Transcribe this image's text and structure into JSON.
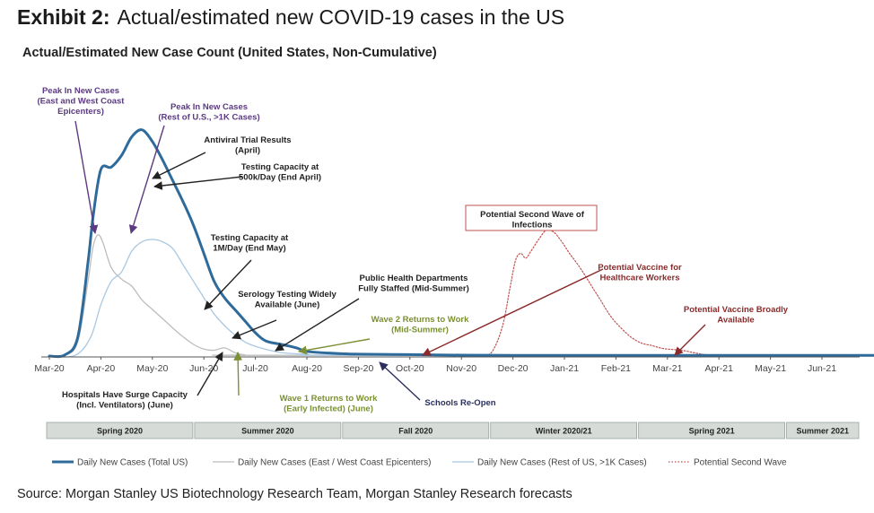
{
  "title": {
    "prefix": "Exhibit 2:",
    "text": "Actual/estimated new COVID-19 cases in the US"
  },
  "chart_data": {
    "type": "line",
    "subtitle": "Actual/Estimated New Case Count (United States, Non-Cumulative)",
    "x_unit": "months since Mar-20",
    "x_range": [
      0,
      16.5
    ],
    "y_range": [
      0,
      100
    ],
    "y_label": "relative new case count (unlabeled axis)",
    "x_ticks": [
      "Mar-20",
      "Apr-20",
      "May-20",
      "Jun-20",
      "Jul-20",
      "Aug-20",
      "Sep-20",
      "Oct-20",
      "Nov-20",
      "Dec-20",
      "Jan-21",
      "Feb-21",
      "Mar-21",
      "Apr-21",
      "May-21",
      "Jun-21"
    ],
    "series": [
      {
        "name": "Daily New Cases (Total US)",
        "color": "#2e6a9a",
        "style": "solid-thick",
        "points": [
          [
            0,
            0
          ],
          [
            0.3,
            0.5
          ],
          [
            0.55,
            8
          ],
          [
            0.75,
            40
          ],
          [
            0.85,
            60
          ],
          [
            1.0,
            80
          ],
          [
            1.2,
            81
          ],
          [
            1.4,
            86
          ],
          [
            1.6,
            94
          ],
          [
            1.8,
            97
          ],
          [
            2.0,
            92
          ],
          [
            2.2,
            84
          ],
          [
            2.4,
            75
          ],
          [
            2.6,
            66
          ],
          [
            2.8,
            56
          ],
          [
            3.0,
            44
          ],
          [
            3.2,
            32
          ],
          [
            3.4,
            25
          ],
          [
            3.6,
            20
          ],
          [
            3.8,
            15
          ],
          [
            4.0,
            10
          ],
          [
            4.2,
            6.5
          ],
          [
            4.5,
            5
          ],
          [
            4.8,
            3.5
          ],
          [
            5.0,
            2
          ],
          [
            5.5,
            1.2
          ],
          [
            6.0,
            0.8
          ],
          [
            7.0,
            0.6
          ],
          [
            8.0,
            0.4
          ],
          [
            9.0,
            0.3
          ],
          [
            10.0,
            0.3
          ],
          [
            12.0,
            0.3
          ],
          [
            13.0,
            0.3
          ],
          [
            16.5,
            0.3
          ]
        ]
      },
      {
        "name": "Daily New Cases (East / West Coast Epicenters)",
        "color": "#bdbdbd",
        "style": "solid",
        "points": [
          [
            0,
            0
          ],
          [
            0.3,
            0.5
          ],
          [
            0.55,
            6
          ],
          [
            0.75,
            32
          ],
          [
            0.85,
            47
          ],
          [
            0.95,
            52
          ],
          [
            1.05,
            48
          ],
          [
            1.2,
            38
          ],
          [
            1.4,
            33
          ],
          [
            1.6,
            30
          ],
          [
            1.8,
            24
          ],
          [
            2.0,
            20
          ],
          [
            2.2,
            16
          ],
          [
            2.5,
            10
          ],
          [
            2.8,
            5
          ],
          [
            3.0,
            3
          ],
          [
            3.2,
            2.5
          ],
          [
            3.4,
            3.5
          ],
          [
            3.6,
            1.5
          ],
          [
            3.8,
            0.5
          ],
          [
            4.2,
            0.3
          ],
          [
            16.5,
            0.3
          ]
        ]
      },
      {
        "name": "Daily New Cases (Rest of US, >1K Cases)",
        "color": "#a9c8e2",
        "style": "solid",
        "points": [
          [
            0,
            0
          ],
          [
            0.5,
            0.3
          ],
          [
            0.8,
            8
          ],
          [
            1.0,
            22
          ],
          [
            1.2,
            32
          ],
          [
            1.4,
            36
          ],
          [
            1.6,
            45
          ],
          [
            1.8,
            49
          ],
          [
            2.0,
            50
          ],
          [
            2.2,
            49
          ],
          [
            2.4,
            46
          ],
          [
            2.6,
            39
          ],
          [
            2.8,
            32
          ],
          [
            3.0,
            25
          ],
          [
            3.2,
            18
          ],
          [
            3.5,
            11
          ],
          [
            3.8,
            6
          ],
          [
            4.1,
            3.5
          ],
          [
            4.5,
            1.5
          ],
          [
            5.0,
            0.8
          ],
          [
            6.0,
            0.4
          ],
          [
            16.5,
            0.3
          ]
        ]
      },
      {
        "name": "Potential Second Wave",
        "color": "#c0504d",
        "style": "dotted",
        "points": [
          [
            8.4,
            0
          ],
          [
            8.6,
            2
          ],
          [
            8.8,
            13
          ],
          [
            8.95,
            30
          ],
          [
            9.05,
            41
          ],
          [
            9.15,
            44
          ],
          [
            9.25,
            42
          ],
          [
            9.35,
            45
          ],
          [
            9.5,
            50
          ],
          [
            9.65,
            54
          ],
          [
            9.8,
            53
          ],
          [
            9.95,
            49
          ],
          [
            10.1,
            44
          ],
          [
            10.3,
            38
          ],
          [
            10.5,
            31
          ],
          [
            10.7,
            24
          ],
          [
            10.9,
            17
          ],
          [
            11.1,
            12
          ],
          [
            11.3,
            8
          ],
          [
            11.5,
            5.5
          ],
          [
            11.7,
            4.5
          ],
          [
            11.9,
            3.3
          ],
          [
            12.1,
            2.8
          ],
          [
            12.3,
            2.4
          ],
          [
            12.5,
            1.5
          ],
          [
            12.7,
            0.7
          ],
          [
            12.9,
            0.3
          ],
          [
            13.2,
            0
          ]
        ]
      }
    ],
    "annotations": [
      {
        "id": "peak-epicenters",
        "lines": [
          "Peak In New Cases",
          "(East and West Coast",
          "Epicenters)"
        ],
        "color": "#5b3a82"
      },
      {
        "id": "peak-rest",
        "lines": [
          "Peak In New Cases",
          "(Rest of U.S., >1K Cases)"
        ],
        "color": "#5b3a82"
      },
      {
        "id": "antiviral",
        "lines": [
          "Antiviral Trial Results",
          "(April)"
        ],
        "color": "#222222"
      },
      {
        "id": "testing-500k",
        "lines": [
          "Testing Capacity at",
          "500k/Day (End April)"
        ],
        "color": "#222222"
      },
      {
        "id": "testing-1m",
        "lines": [
          "Testing Capacity at",
          "1M/Day (End May)"
        ],
        "color": "#222222"
      },
      {
        "id": "serology",
        "lines": [
          "Serology Testing Widely",
          "Available (June)"
        ],
        "color": "#222222"
      },
      {
        "id": "public-health",
        "lines": [
          "Public Health Departments",
          "Fully Staffed (Mid-Summer)"
        ],
        "color": "#222222"
      },
      {
        "id": "wave2",
        "lines": [
          "Wave 2 Returns to Work",
          "(Mid-Summer)"
        ],
        "color": "#7b8f35"
      },
      {
        "id": "second-wave-box",
        "lines": [
          "Potential Second Wave of",
          "Infections"
        ],
        "color": "#222222",
        "boxed": true
      },
      {
        "id": "vaccine-hcw",
        "lines": [
          "Potential Vaccine for",
          "Healthcare Workers"
        ],
        "color": "#8b2a2a"
      },
      {
        "id": "vaccine-broad",
        "lines": [
          "Potential Vaccine Broadly",
          "Available"
        ],
        "color": "#8b2a2a"
      },
      {
        "id": "hospitals",
        "lines": [
          "Hospitals Have Surge Capacity",
          "(Incl. Ventilators) (June)"
        ],
        "color": "#222222"
      },
      {
        "id": "wave1",
        "lines": [
          "Wave 1 Returns to Work",
          "(Early Infected) (June)"
        ],
        "color": "#7b8f35"
      },
      {
        "id": "schools",
        "lines": [
          "Schools Re-Open"
        ],
        "color": "#2a2f5e"
      }
    ],
    "seasons": [
      {
        "label": "Spring 2020",
        "span": [
          0,
          3
        ]
      },
      {
        "label": "Summer 2020",
        "span": [
          3,
          6
        ]
      },
      {
        "label": "Fall 2020",
        "span": [
          6,
          9
        ]
      },
      {
        "label": "Winter 2020/21",
        "span": [
          9,
          12
        ]
      },
      {
        "label": "Spring 2021",
        "span": [
          12,
          15
        ]
      },
      {
        "label": "Summer 2021",
        "span": [
          15,
          16.5
        ]
      }
    ]
  },
  "source": "Source: Morgan Stanley US Biotechnology Research Team, Morgan Stanley Research forecasts"
}
